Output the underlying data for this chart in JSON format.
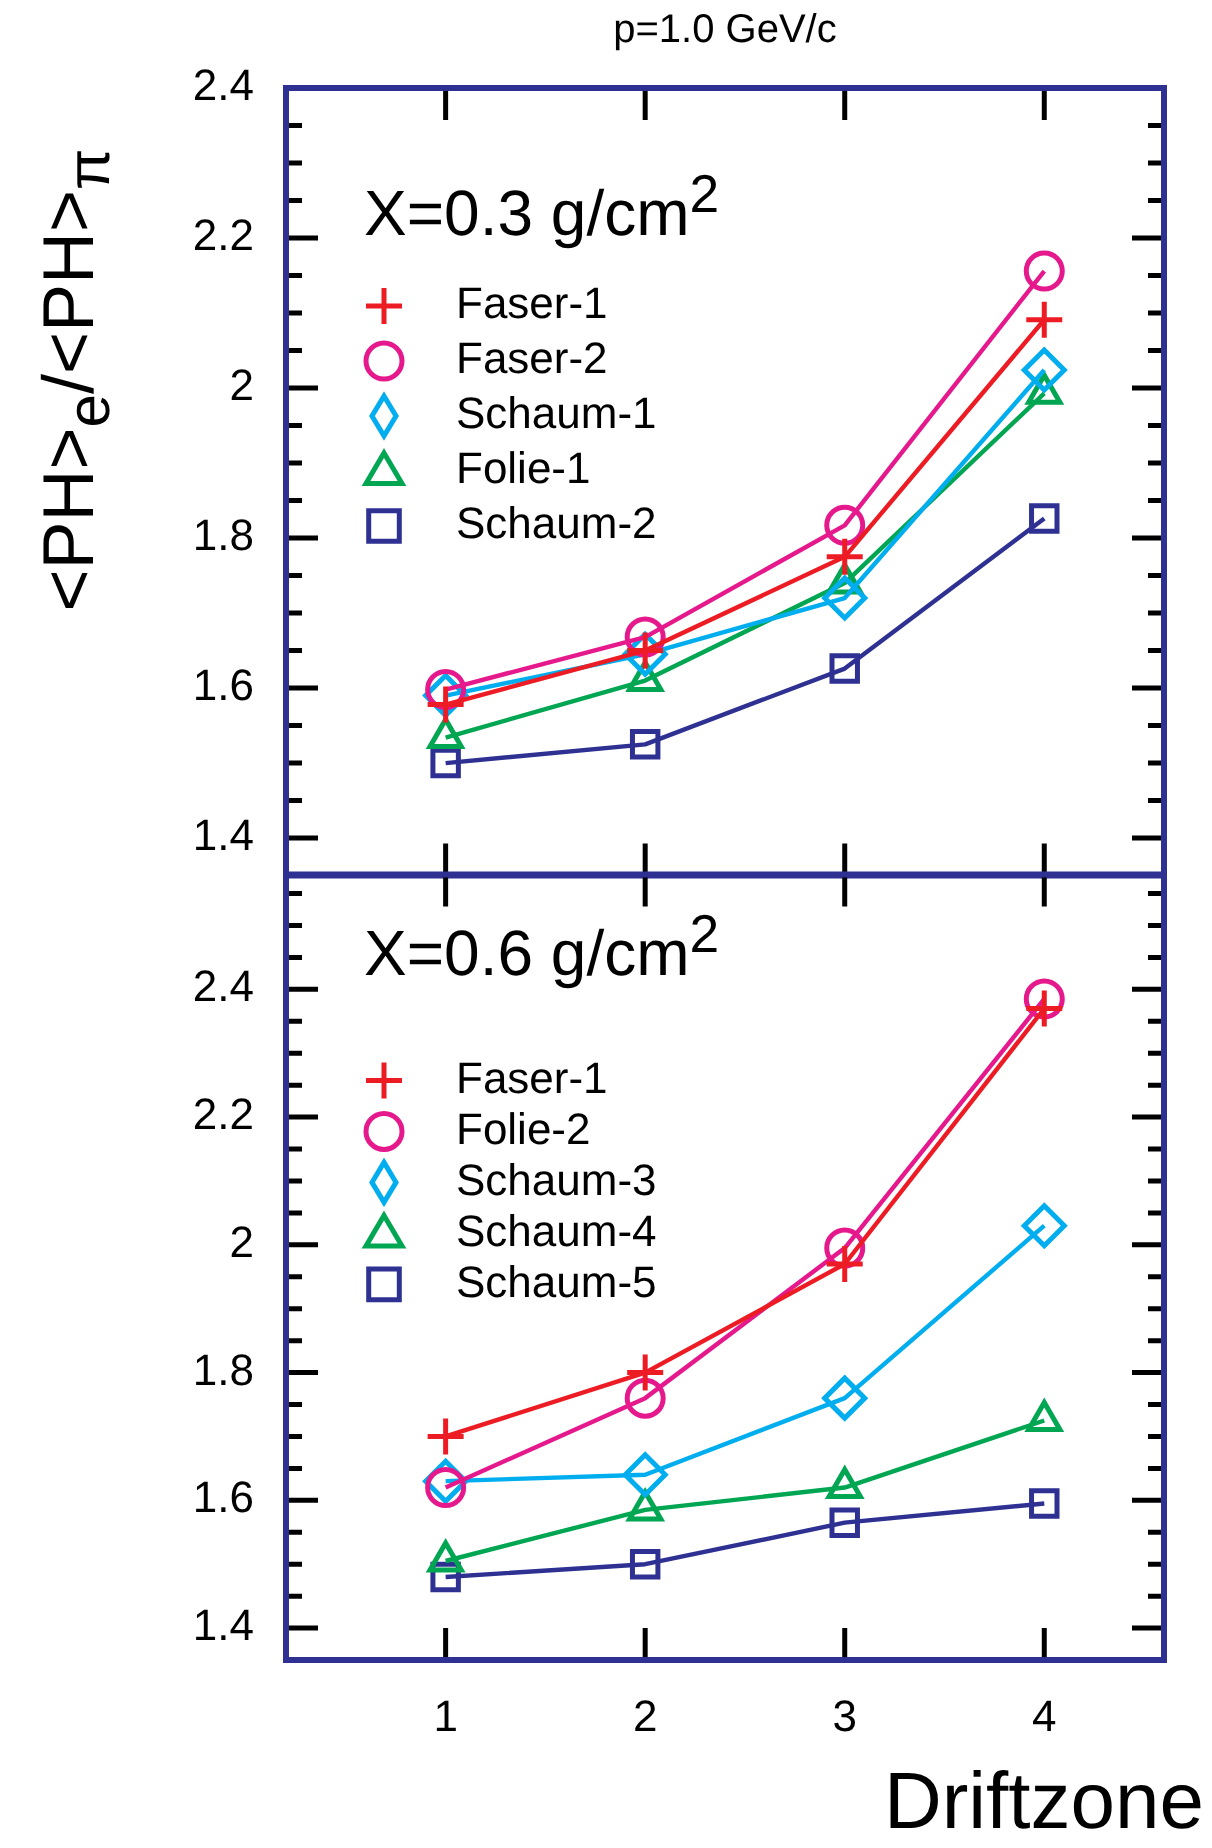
{
  "chart_data": [
    {
      "type": "line",
      "title": "p=1.0 GeV/c",
      "ylabel": "<PH>$_{e}$/<PH>$_{π}$",
      "annotations": [
        "X=0.3 g/cm$^{2}$"
      ],
      "legend": "top left",
      "tick_labels": "y",
      "x": [
        1,
        2,
        3,
        4
      ],
      "xlim": [
        0.2,
        4.6
      ],
      "xticks": [
        1,
        2,
        3,
        4
      ],
      "ylim": [
        1.35,
        2.4
      ],
      "yticks": [
        {
          "value": 1.35,
          "label": null
        },
        1.4,
        {
          "value": 1.45,
          "label": null
        },
        {
          "value": 1.5,
          "label": null
        },
        {
          "value": 1.55,
          "label": null
        },
        1.6,
        {
          "value": 1.65,
          "label": null
        },
        {
          "value": 1.7,
          "label": null
        },
        {
          "value": 1.75,
          "label": null
        },
        1.8,
        {
          "value": 1.85,
          "label": null
        },
        {
          "value": 1.9,
          "label": null
        },
        {
          "value": 1.95,
          "label": null
        },
        2,
        {
          "value": 2.05,
          "label": null
        },
        {
          "value": 2.1,
          "label": null
        },
        {
          "value": 2.15,
          "label": null
        },
        2.2,
        {
          "value": 2.25,
          "label": null
        },
        {
          "value": 2.3,
          "label": null
        },
        {
          "value": 2.35,
          "label": null
        },
        2.4
      ],
      "series": [
        {
          "name": "Faser-1",
          "color": "#ed1c24",
          "marker": "cross",
          "values": [
            1.578,
            1.65,
            1.775,
            2.091
          ]
        },
        {
          "name": "Faser-2",
          "color": "#e6198c",
          "marker": "circle",
          "values": [
            1.598,
            1.668,
            1.817,
            2.156
          ]
        },
        {
          "name": "Schaum-1",
          "color": "#00aeef",
          "marker": "diamond",
          "values": [
            1.59,
            1.645,
            1.72,
            2.024
          ]
        },
        {
          "name": "Folie-1",
          "color": "#00a651",
          "marker": "triangle",
          "values": [
            1.534,
            1.61,
            1.74,
            1.993
          ]
        },
        {
          "name": "Schaum-2",
          "color": "#2e3192",
          "marker": "square",
          "values": [
            1.5,
            1.525,
            1.626,
            1.826
          ]
        }
      ]
    },
    {
      "type": "line",
      "xlabel": "Driftzone",
      "annotations": [
        "X=0.6 g/cm$^{2}$"
      ],
      "legend": "top left",
      "x": [
        1,
        2,
        3,
        4
      ],
      "xlim": [
        0.2,
        4.6
      ],
      "xticks": [
        1,
        2,
        3,
        4
      ],
      "ylim": [
        1.35,
        2.58
      ],
      "yticks": [
        1.4,
        {
          "value": 1.45,
          "label": null
        },
        {
          "value": 1.5,
          "label": null
        },
        {
          "value": 1.55,
          "label": null
        },
        1.6,
        {
          "value": 1.65,
          "label": null
        },
        {
          "value": 1.7,
          "label": null
        },
        {
          "value": 1.75,
          "label": null
        },
        1.8,
        {
          "value": 1.85,
          "label": null
        },
        {
          "value": 1.9,
          "label": null
        },
        {
          "value": 1.95,
          "label": null
        },
        2,
        {
          "value": 2.05,
          "label": null
        },
        {
          "value": 2.1,
          "label": null
        },
        {
          "value": 2.15,
          "label": null
        },
        2.2,
        {
          "value": 2.25,
          "label": null
        },
        {
          "value": 2.3,
          "label": null
        },
        {
          "value": 2.35,
          "label": null
        },
        2.4,
        {
          "value": 2.45,
          "label": null
        },
        {
          "value": 2.5,
          "label": null
        },
        {
          "value": 2.55,
          "label": null
        }
      ],
      "series": [
        {
          "name": "Faser-1",
          "color": "#ed1c24",
          "marker": "cross",
          "values": [
            1.7,
            1.8,
            1.97,
            2.37
          ]
        },
        {
          "name": "Folie-2",
          "color": "#e6198c",
          "marker": "circle",
          "values": [
            1.62,
            1.76,
            1.995,
            2.385
          ]
        },
        {
          "name": "Schaum-3",
          "color": "#00aeef",
          "marker": "diamond",
          "values": [
            1.63,
            1.64,
            1.76,
            2.03
          ]
        },
        {
          "name": "Schaum-4",
          "color": "#00a651",
          "marker": "triangle",
          "values": [
            1.505,
            1.585,
            1.62,
            1.725
          ]
        },
        {
          "name": "Schaum-5",
          "color": "#2e3192",
          "marker": "square",
          "values": [
            1.48,
            1.5,
            1.565,
            1.595
          ]
        }
      ]
    }
  ]
}
